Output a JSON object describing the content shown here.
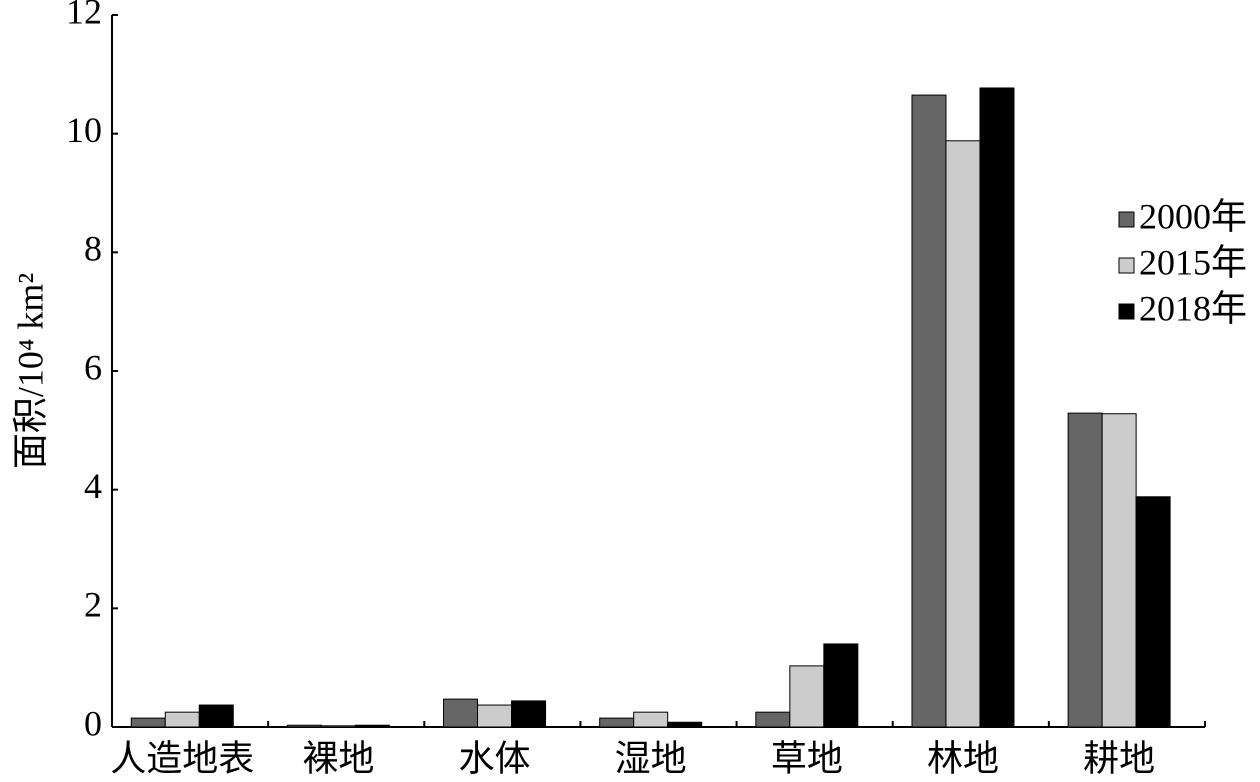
{
  "chart_data": {
    "type": "bar",
    "y_label": "面积/10⁴ km²",
    "categories": [
      "人造地表",
      "裸地",
      "水体",
      "湿地",
      "草地",
      "林地",
      "耕地"
    ],
    "series": [
      {
        "name": "2000年",
        "color": "#666666",
        "values": [
          0.15,
          0.03,
          0.47,
          0.15,
          0.25,
          10.65,
          5.29
        ]
      },
      {
        "name": "2015年",
        "color": "#cccccc",
        "values": [
          0.25,
          0.02,
          0.37,
          0.25,
          1.03,
          9.88,
          5.28
        ]
      },
      {
        "name": "2018年",
        "color": "#000000",
        "values": [
          0.37,
          0.03,
          0.44,
          0.08,
          1.4,
          10.77,
          3.88
        ]
      }
    ],
    "ylim": [
      0,
      12
    ],
    "yticks": [
      0,
      2,
      4,
      6,
      8,
      10,
      12
    ],
    "legend": "right"
  }
}
